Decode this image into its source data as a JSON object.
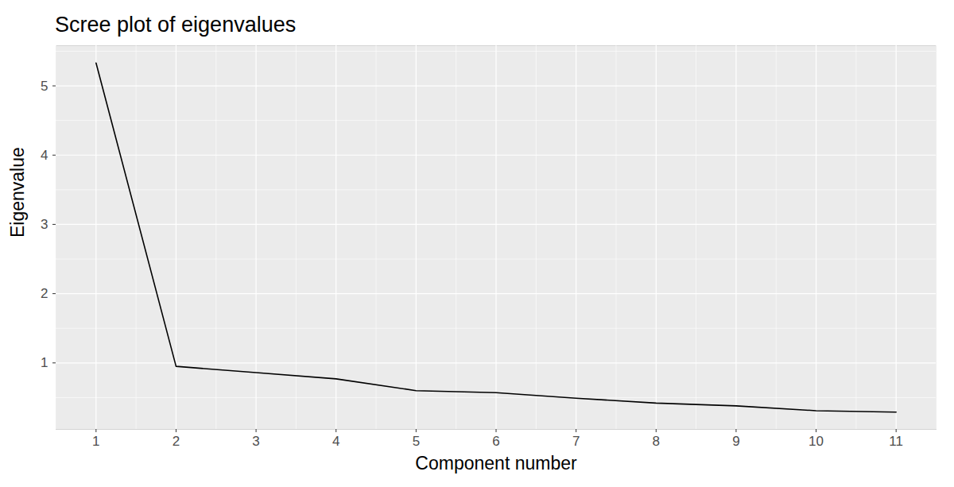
{
  "chart_data": {
    "type": "line",
    "title": "Scree plot of eigenvalues",
    "x_label": "Component number",
    "y_label": "Eigenvalue",
    "x": [
      1,
      2,
      3,
      4,
      5,
      6,
      7,
      8,
      9,
      10,
      11
    ],
    "values": [
      5.33,
      0.95,
      0.86,
      0.77,
      0.6,
      0.57,
      0.49,
      0.42,
      0.38,
      0.31,
      0.29
    ],
    "color": "#000000",
    "xlim": [
      0.5,
      11.5
    ],
    "ylim": [
      0.04,
      5.58
    ],
    "xticks": [
      1,
      2,
      3,
      4,
      5,
      6,
      7,
      8,
      9,
      10,
      11
    ],
    "yticks": [
      1,
      2,
      3,
      4,
      5
    ],
    "grid": true
  }
}
